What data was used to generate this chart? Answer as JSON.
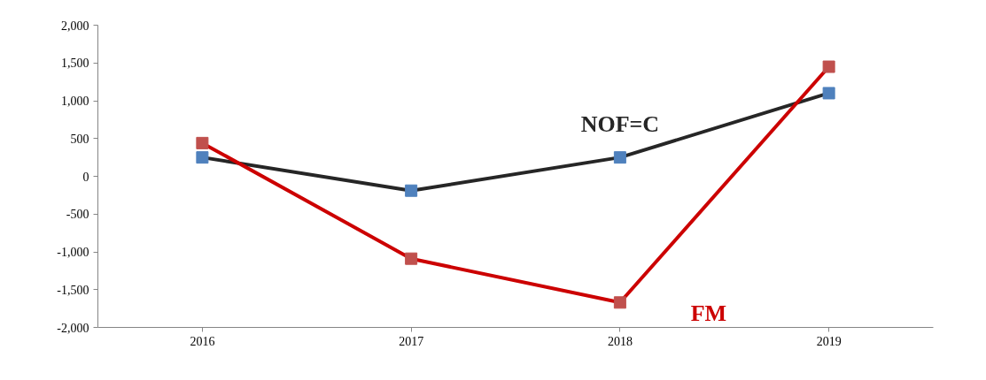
{
  "chart_data": {
    "type": "line",
    "categories": [
      "2016",
      "2017",
      "2018",
      "2019"
    ],
    "series": [
      {
        "name": "NOF=C",
        "color": "#262626",
        "colors": [
          "#4f81bd",
          "#4f81bd",
          "#4f81bd",
          "#4f81bd"
        ],
        "values": [
          250,
          -190,
          250,
          1100
        ]
      },
      {
        "name": "FM",
        "color": "#cc0000",
        "colors": [
          "#c0504d",
          "#c0504d",
          "#c0504d",
          "#c0504d"
        ],
        "values": [
          440,
          -1090,
          -1670,
          1450
        ]
      }
    ],
    "ylim": [
      -2000,
      2000
    ],
    "yticks": [
      {
        "value": -2000,
        "label": "-2,000"
      },
      {
        "value": -1500,
        "label": "-1,500"
      },
      {
        "value": -1000,
        "label": "-1,000"
      },
      {
        "value": -500,
        "label": "-500"
      },
      0,
      {
        "value": 500,
        "label": "500"
      },
      {
        "value": 1000,
        "label": "1,000"
      },
      {
        "value": 1500,
        "label": "1,500"
      },
      {
        "value": 2000,
        "label": "2,000"
      }
    ],
    "grid": false,
    "marker": "square",
    "line_style": "solid"
  }
}
